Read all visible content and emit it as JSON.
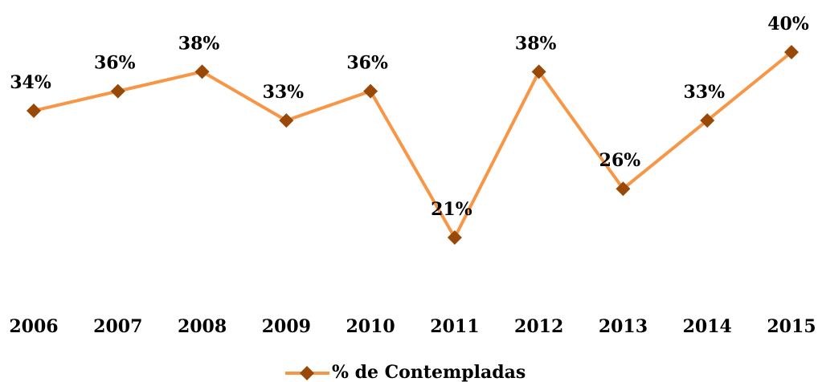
{
  "chart_data": {
    "type": "line",
    "categories": [
      "2006",
      "2007",
      "2008",
      "2009",
      "2010",
      "2011",
      "2012",
      "2013",
      "2014",
      "2015"
    ],
    "series": [
      {
        "name": "% de Contempladas",
        "color": "#f79646",
        "marker_color": "#984807",
        "values": [
          34,
          36,
          38,
          33,
          36,
          21,
          38,
          26,
          33,
          40
        ],
        "value_labels": [
          "34%",
          "36%",
          "38%",
          "33%",
          "36%",
          "21%",
          "38%",
          "26%",
          "33%",
          "40%"
        ]
      }
    ],
    "legend": "bottom"
  }
}
